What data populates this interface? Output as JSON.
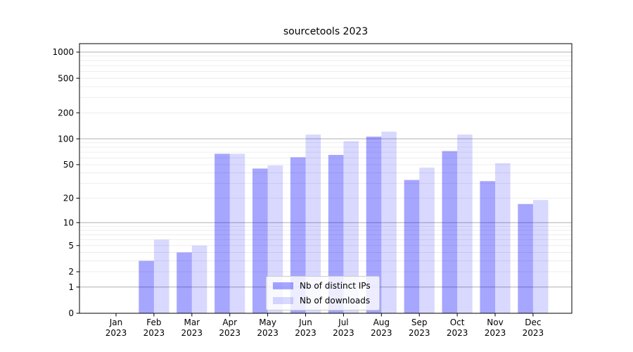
{
  "page": {
    "background": "#ffffff"
  },
  "chart_data": {
    "type": "bar",
    "title": "sourcetools 2023",
    "categories": [
      "Jan",
      "Feb",
      "Mar",
      "Apr",
      "May",
      "Jun",
      "Jul",
      "Aug",
      "Sep",
      "Oct",
      "Nov",
      "Dec"
    ],
    "year_label": "2023",
    "series": [
      {
        "name": "Nb of distinct IPs",
        "color": "rgba(0,0,255,0.35)",
        "values": [
          0,
          3,
          4,
          67,
          45,
          61,
          65,
          106,
          33,
          72,
          32,
          17
        ]
      },
      {
        "name": "Nb of downloads",
        "color": "rgba(0,0,255,0.15)",
        "values": [
          0,
          6,
          5,
          67,
          49,
          112,
          94,
          121,
          46,
          112,
          52,
          19
        ]
      }
    ],
    "y_scale": "log1p",
    "ylim": [
      0,
      1250
    ],
    "y_ticks": [
      0,
      1,
      2,
      5,
      10,
      20,
      50,
      100,
      200,
      500,
      1000
    ],
    "y_major_gridlines": [
      1,
      10,
      100,
      1000
    ],
    "grid": true,
    "legend_position": "lower center",
    "colors": {
      "major_grid": "#b0b0b0",
      "minor_grid": "#e8e8e8",
      "axis": "#000000",
      "text": "#000000"
    }
  }
}
